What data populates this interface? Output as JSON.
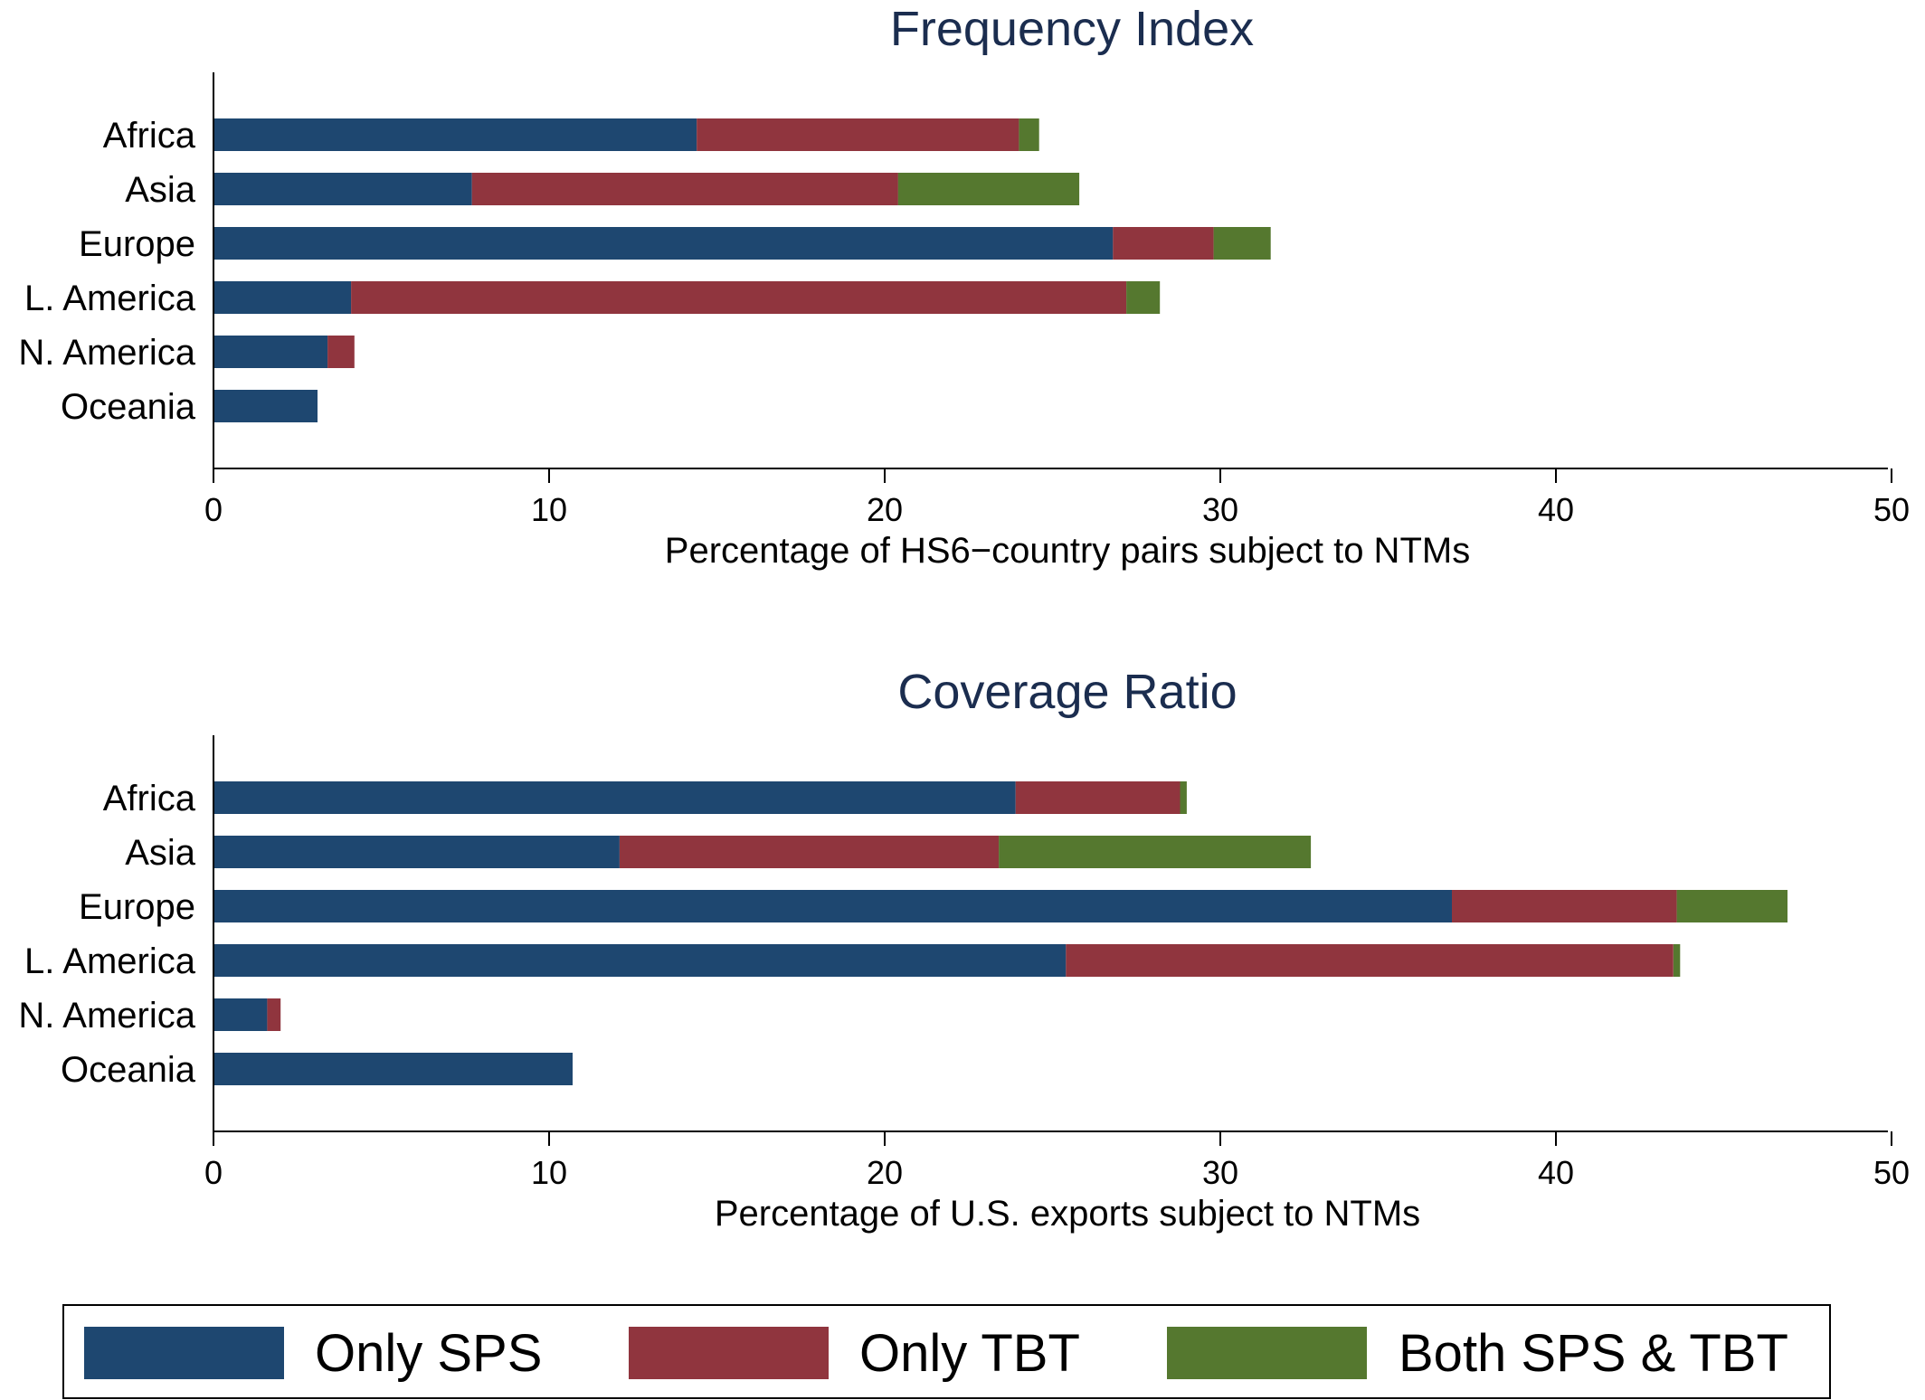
{
  "colors": {
    "only_sps": "#1e4770",
    "only_tbt": "#90353e",
    "both": "#55782f",
    "title": "#1b2d4f",
    "axis": "#000000"
  },
  "legend": {
    "items": [
      {
        "label": "Only SPS",
        "color": "#1e4770"
      },
      {
        "label": "Only TBT",
        "color": "#90353e"
      },
      {
        "label": "Both SPS & TBT",
        "color": "#55782f"
      }
    ]
  },
  "chart_data": [
    {
      "type": "bar",
      "orientation": "horizontal",
      "stacked": true,
      "title": "Frequency Index",
      "xlabel": "Percentage of HS6−country pairs subject to NTMs",
      "ylabel": "",
      "xlim": [
        0,
        50
      ],
      "xticks": [
        0,
        10,
        20,
        30,
        40,
        50
      ],
      "categories": [
        "Africa",
        "Asia",
        "Europe",
        "L. America",
        "N. America",
        "Oceania"
      ],
      "series": [
        {
          "name": "Only SPS",
          "values": [
            14.4,
            7.7,
            26.8,
            4.1,
            3.4,
            3.1
          ]
        },
        {
          "name": "Only TBT",
          "values": [
            9.6,
            12.7,
            3.0,
            23.1,
            0.8,
            0.0
          ]
        },
        {
          "name": "Both SPS & TBT",
          "values": [
            0.6,
            5.4,
            1.7,
            1.0,
            0.0,
            0.0
          ]
        }
      ]
    },
    {
      "type": "bar",
      "orientation": "horizontal",
      "stacked": true,
      "title": "Coverage Ratio",
      "xlabel": "Percentage of U.S. exports subject to NTMs",
      "ylabel": "",
      "xlim": [
        0,
        50
      ],
      "xticks": [
        0,
        10,
        20,
        30,
        40,
        50
      ],
      "categories": [
        "Africa",
        "Asia",
        "Europe",
        "L. America",
        "N. America",
        "Oceania"
      ],
      "series": [
        {
          "name": "Only SPS",
          "values": [
            23.9,
            12.1,
            36.9,
            25.4,
            1.6,
            10.7
          ]
        },
        {
          "name": "Only TBT",
          "values": [
            4.9,
            11.3,
            6.7,
            18.1,
            0.4,
            0.0
          ]
        },
        {
          "name": "Both SPS & TBT",
          "values": [
            0.2,
            9.3,
            3.3,
            0.2,
            0.0,
            0.0
          ]
        }
      ]
    }
  ]
}
